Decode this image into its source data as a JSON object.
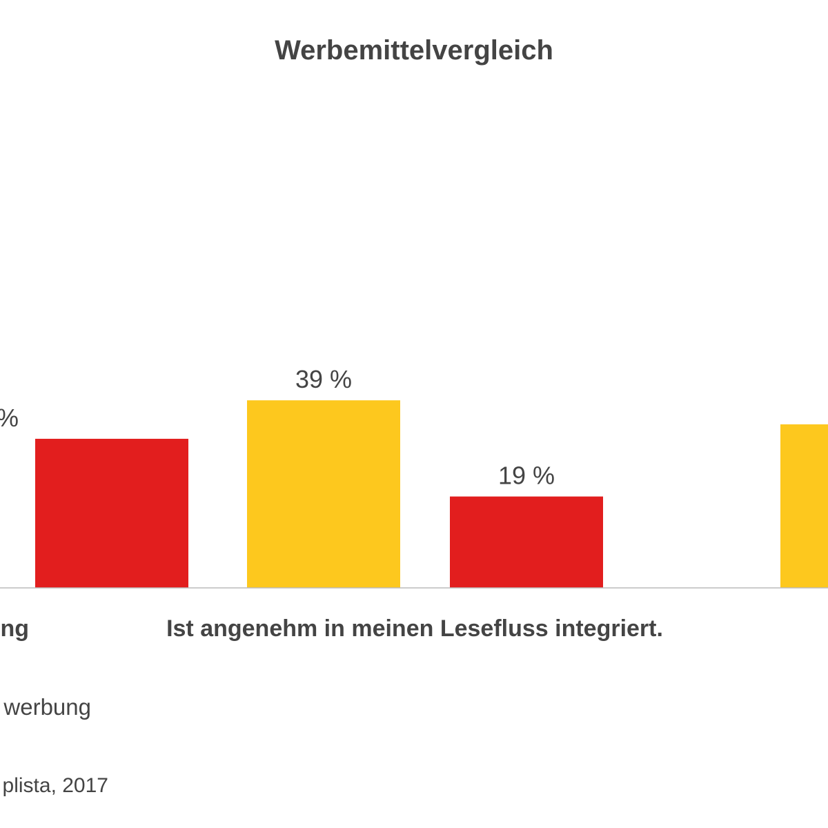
{
  "chart_data": {
    "type": "bar",
    "title": "Werbemittelvergleich",
    "categories": [
      "…ng",
      "Ist angenehm in meinen Lesefluss integriert.",
      ""
    ],
    "series": [
      {
        "color": "#FDC81E",
        "values": [
          null,
          39,
          34
        ]
      },
      {
        "color": "#E21E1E",
        "values": [
          31,
          19,
          null
        ]
      }
    ],
    "data_labels": [
      {
        "series": 1,
        "category": 0,
        "text": "%"
      },
      {
        "series": 0,
        "category": 1,
        "text": "39 %"
      },
      {
        "series": 1,
        "category": 1,
        "text": "19 %"
      }
    ],
    "legend": [
      {
        "text": "werbung"
      }
    ],
    "source": "plista, 2017",
    "ylim": [
      0,
      100
    ],
    "grid": false,
    "axis_line_color": "#bbbbbb"
  }
}
